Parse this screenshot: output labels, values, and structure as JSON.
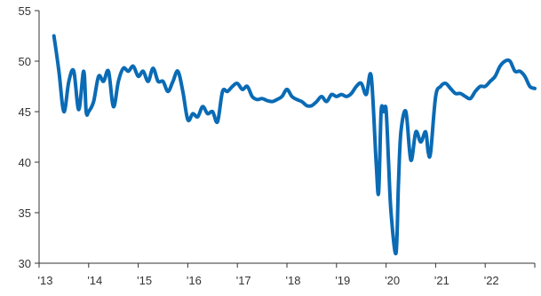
{
  "chart_data": {
    "type": "line",
    "title": "",
    "xlabel": "",
    "ylabel": "",
    "ylim": [
      30,
      55
    ],
    "xlim": [
      2013,
      2023
    ],
    "grid": false,
    "legend": "none",
    "colors": {
      "line": "#0A6BB5",
      "axis": "#333333"
    },
    "y_ticks": [
      "30",
      "35",
      "40",
      "45",
      "50",
      "55"
    ],
    "x_ticks": [
      {
        "label": "'13",
        "value": 2013
      },
      {
        "label": "'14",
        "value": 2014
      },
      {
        "label": "'15",
        "value": 2015
      },
      {
        "label": "'16",
        "value": 2016
      },
      {
        "label": "'17",
        "value": 2017
      },
      {
        "label": "'18",
        "value": 2018
      },
      {
        "label": "'19",
        "value": 2019
      },
      {
        "label": "'20",
        "value": 2020
      },
      {
        "label": "'21",
        "value": 2021
      },
      {
        "label": "'22",
        "value": 2022
      },
      {
        "label": "",
        "value": 2023
      }
    ],
    "series": [
      {
        "x": [
          2013.3,
          2013.4,
          2013.5,
          2013.6,
          2013.7,
          2013.8,
          2013.9,
          2013.95,
          2014.0,
          2014.1,
          2014.2,
          2014.3,
          2014.4,
          2014.5,
          2014.6,
          2014.7,
          2014.8,
          2014.9,
          2015.0,
          2015.1,
          2015.2,
          2015.3,
          2015.4,
          2015.5,
          2015.6,
          2015.7,
          2015.8,
          2015.9,
          2016.0,
          2016.1,
          2016.2,
          2016.3,
          2016.4,
          2016.5,
          2016.6,
          2016.7,
          2016.8,
          2016.9,
          2017.0,
          2017.1,
          2017.2,
          2017.3,
          2017.4,
          2017.5,
          2017.6,
          2017.7,
          2017.8,
          2017.9,
          2018.0,
          2018.1,
          2018.2,
          2018.3,
          2018.4,
          2018.5,
          2018.6,
          2018.7,
          2018.8,
          2018.9,
          2019.0,
          2019.1,
          2019.2,
          2019.3,
          2019.4,
          2019.5,
          2019.6,
          2019.7,
          2019.8,
          2019.85,
          2019.9,
          2019.95,
          2020.0,
          2020.05,
          2020.1,
          2020.2,
          2020.25,
          2020.3,
          2020.4,
          2020.5,
          2020.6,
          2020.7,
          2020.8,
          2020.85,
          2020.9,
          2021.0,
          2021.1,
          2021.2,
          2021.3,
          2021.4,
          2021.5,
          2021.6,
          2021.7,
          2021.8,
          2021.9,
          2022.0,
          2022.1,
          2022.2,
          2022.3,
          2022.4,
          2022.5,
          2022.6,
          2022.7,
          2022.8,
          2022.9,
          2023.0
        ],
        "y": [
          52.5,
          49.0,
          45.0,
          48.0,
          49.0,
          45.2,
          49.0,
          45.0,
          45.0,
          46.0,
          48.5,
          48.0,
          49.0,
          45.5,
          48.0,
          49.3,
          49.0,
          49.5,
          48.5,
          49.0,
          48.0,
          49.3,
          48.0,
          48.0,
          47.0,
          48.0,
          49.0,
          47.0,
          44.2,
          44.8,
          44.5,
          45.5,
          44.8,
          45.0,
          44.0,
          47.0,
          47.0,
          47.5,
          47.8,
          47.2,
          47.5,
          46.5,
          46.2,
          46.3,
          46.1,
          46.0,
          46.2,
          46.5,
          47.2,
          46.5,
          46.2,
          46.0,
          45.6,
          45.6,
          46.0,
          46.5,
          46.0,
          46.7,
          46.5,
          46.7,
          46.5,
          46.8,
          47.5,
          47.8,
          46.7,
          48.5,
          40.0,
          37.0,
          45.0,
          45.0,
          45.2,
          40.0,
          35.0,
          31.0,
          38.0,
          43.0,
          45.0,
          40.2,
          43.0,
          42.0,
          43.0,
          41.0,
          41.0,
          46.5,
          47.5,
          47.8,
          47.3,
          46.8,
          46.8,
          46.5,
          46.3,
          47.0,
          47.5,
          47.5,
          48.0,
          48.5,
          49.5,
          50.0,
          50.0,
          49.0,
          49.0,
          48.5,
          47.5,
          47.3
        ]
      }
    ]
  }
}
